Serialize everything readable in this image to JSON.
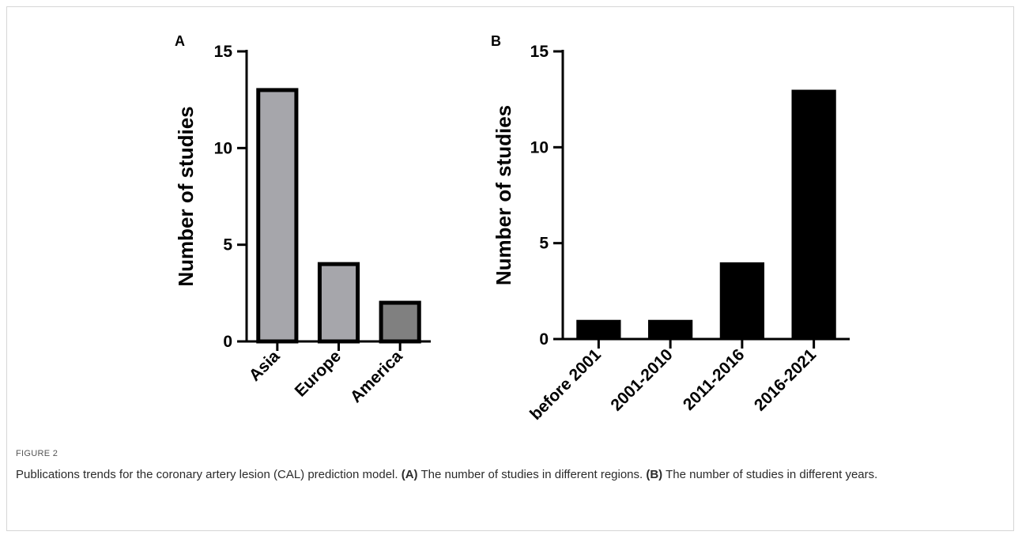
{
  "chart_data": [
    {
      "type": "bar",
      "panel": "A",
      "categories": [
        "Asia",
        "Europe",
        "America"
      ],
      "values": [
        13,
        4,
        2
      ],
      "ylabel": "Number of studies",
      "xlabel": "",
      "ylim": [
        0,
        15
      ],
      "yticks": [
        0,
        5,
        10,
        15
      ],
      "bar_colors": [
        "#a6a6ab",
        "#a6a6ab",
        "#808080"
      ],
      "bar_outline": "#000000",
      "grid": false
    },
    {
      "type": "bar",
      "panel": "B",
      "categories": [
        "before 2001",
        "2001-2010",
        "2011-2016",
        "2016-2021"
      ],
      "values": [
        1,
        1,
        4,
        13
      ],
      "ylabel": "Number of studies",
      "xlabel": "",
      "ylim": [
        0,
        15
      ],
      "yticks": [
        0,
        5,
        10,
        15
      ],
      "bar_colors": [
        "#000000",
        "#000000",
        "#000000",
        "#000000"
      ],
      "grid": false
    }
  ],
  "caption": {
    "label": "FIGURE 2",
    "intro": "Publications trends for the coronary artery lesion (CAL) prediction model.",
    "part_a_tag": "(A)",
    "part_a_text": "The number of studies in different regions.",
    "part_b_tag": "(B)",
    "part_b_text": "The number of studies in different years."
  }
}
